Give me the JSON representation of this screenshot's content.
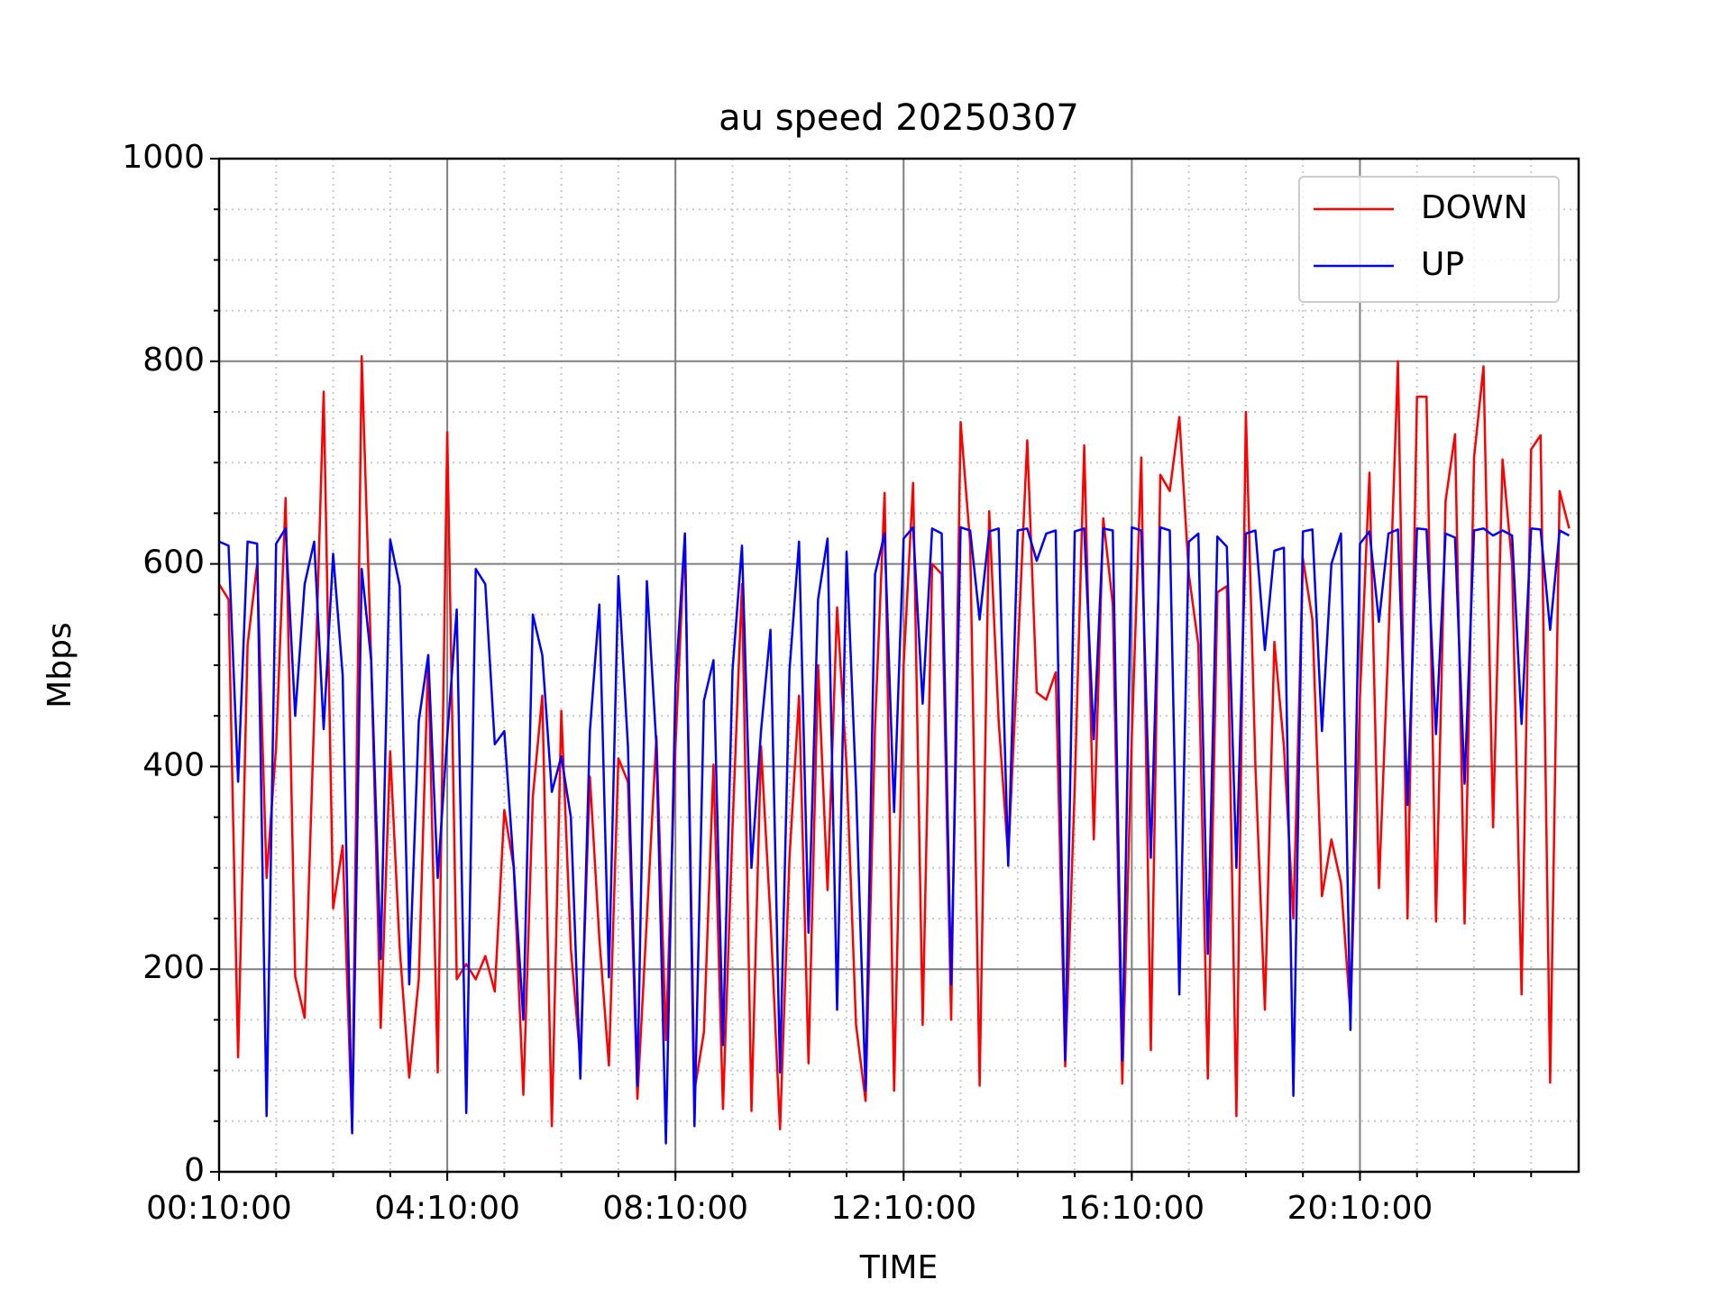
{
  "chart_data": {
    "type": "line",
    "title": "au speed 20250307",
    "xlabel": "TIME",
    "ylabel": "Mbps",
    "categories": [
      "00:10:00",
      "00:20:00",
      "00:30:00",
      "00:40:00",
      "00:50:00",
      "01:00:00",
      "01:10:00",
      "01:20:00",
      "01:30:00",
      "01:40:00",
      "01:50:00",
      "02:00:00",
      "02:10:00",
      "02:20:00",
      "02:30:00",
      "02:40:00",
      "02:50:00",
      "03:00:00",
      "03:10:00",
      "03:20:00",
      "03:30:00",
      "03:40:00",
      "03:50:00",
      "04:00:00",
      "04:10:00",
      "04:20:00",
      "04:30:00",
      "04:40:00",
      "04:50:00",
      "05:00:00",
      "05:10:00",
      "05:20:00",
      "05:30:00",
      "05:40:00",
      "05:50:00",
      "06:00:00",
      "06:10:00",
      "06:20:00",
      "06:30:00",
      "06:40:00",
      "06:50:00",
      "07:00:00",
      "07:10:00",
      "07:20:00",
      "07:30:00",
      "07:40:00",
      "07:50:00",
      "08:00:00",
      "08:10:00",
      "08:20:00",
      "08:30:00",
      "08:40:00",
      "08:50:00",
      "09:00:00",
      "09:10:00",
      "09:20:00",
      "09:30:00",
      "09:40:00",
      "09:50:00",
      "10:00:00",
      "10:10:00",
      "10:20:00",
      "10:30:00",
      "10:40:00",
      "10:50:00",
      "11:00:00",
      "11:10:00",
      "11:20:00",
      "11:30:00",
      "11:40:00",
      "11:50:00",
      "12:00:00",
      "12:10:00",
      "12:20:00",
      "12:30:00",
      "12:40:00",
      "12:50:00",
      "13:00:00",
      "13:10:00",
      "13:20:00",
      "13:30:00",
      "13:40:00",
      "13:50:00",
      "14:00:00",
      "14:10:00",
      "14:20:00",
      "14:30:00",
      "14:40:00",
      "14:50:00",
      "15:00:00",
      "15:10:00",
      "15:20:00",
      "15:30:00",
      "15:40:00",
      "15:50:00",
      "16:00:00",
      "16:10:00",
      "16:20:00",
      "16:30:00",
      "16:40:00",
      "16:50:00",
      "17:00:00",
      "17:10:00",
      "17:20:00",
      "17:30:00",
      "17:40:00",
      "17:50:00",
      "18:00:00",
      "18:10:00",
      "18:20:00",
      "18:30:00",
      "18:40:00",
      "18:50:00",
      "19:00:00",
      "19:10:00",
      "19:20:00",
      "19:30:00",
      "19:40:00",
      "19:50:00",
      "20:00:00",
      "20:10:00",
      "20:20:00",
      "20:30:00",
      "20:40:00",
      "20:50:00",
      "21:00:00",
      "21:10:00",
      "21:20:00",
      "21:30:00",
      "21:40:00",
      "21:50:00",
      "22:00:00",
      "22:10:00",
      "22:20:00",
      "22:30:00",
      "22:40:00",
      "22:50:00",
      "23:00:00",
      "23:10:00",
      "23:20:00",
      "23:30:00",
      "23:40:00",
      "23:50:00"
    ],
    "xticks": [
      "00:10:00",
      "04:10:00",
      "08:10:00",
      "12:10:00",
      "16:10:00",
      "20:10:00"
    ],
    "series": [
      {
        "name": "DOWN",
        "color": "#ff0000",
        "values": [
          580,
          565,
          113,
          520,
          600,
          290,
          420,
          665,
          193,
          152,
          450,
          770,
          260,
          322,
          40,
          805,
          505,
          142,
          415,
          220,
          93,
          190,
          510,
          98,
          730,
          190,
          205,
          190,
          213,
          178,
          357,
          300,
          76,
          370,
          470,
          45,
          455,
          220,
          110,
          390,
          230,
          105,
          408,
          385,
          72,
          250,
          430,
          130,
          420,
          630,
          80,
          138,
          402,
          62,
          340,
          580,
          60,
          420,
          250,
          42,
          310,
          470,
          107,
          500,
          278,
          557,
          400,
          145,
          70,
          440,
          670,
          80,
          500,
          680,
          145,
          600,
          590,
          150,
          740,
          620,
          85,
          652,
          445,
          310,
          510,
          722,
          473,
          466,
          493,
          104,
          380,
          717,
          328,
          645,
          560,
          87,
          430,
          705,
          120,
          688,
          672,
          745,
          590,
          520,
          92,
          572,
          578,
          55,
          750,
          400,
          160,
          523,
          420,
          250,
          605,
          545,
          272,
          328,
          285,
          155,
          470,
          690,
          280,
          525,
          800,
          250,
          765,
          765,
          247,
          662,
          728,
          245,
          705,
          795,
          340,
          703,
          600,
          175,
          713,
          727,
          88,
          672,
          635
        ]
      },
      {
        "name": "UP",
        "color": "#0000ff",
        "values": [
          622,
          618,
          385,
          622,
          620,
          55,
          620,
          635,
          450,
          580,
          622,
          437,
          610,
          490,
          38,
          595,
          505,
          210,
          624,
          578,
          185,
          445,
          510,
          290,
          430,
          555,
          58,
          595,
          580,
          422,
          435,
          300,
          150,
          550,
          510,
          375,
          410,
          350,
          92,
          435,
          560,
          192,
          588,
          420,
          85,
          583,
          420,
          28,
          480,
          630,
          45,
          465,
          505,
          125,
          495,
          618,
          300,
          435,
          535,
          98,
          495,
          622,
          236,
          565,
          625,
          160,
          612,
          380,
          80,
          590,
          630,
          355,
          625,
          636,
          462,
          635,
          630,
          185,
          636,
          633,
          545,
          632,
          635,
          302,
          633,
          635,
          603,
          630,
          633,
          110,
          632,
          635,
          427,
          635,
          633,
          110,
          636,
          633,
          310,
          636,
          633,
          175,
          622,
          630,
          215,
          627,
          617,
          300,
          630,
          633,
          515,
          613,
          616,
          75,
          632,
          634,
          435,
          600,
          630,
          140,
          620,
          632,
          543,
          630,
          634,
          362,
          635,
          634,
          432,
          630,
          626,
          383,
          633,
          635,
          628,
          633,
          628,
          442,
          635,
          634,
          535,
          633,
          628
        ]
      }
    ],
    "ylim": [
      0,
      1000
    ],
    "yticks": [
      0,
      200,
      400,
      600,
      800,
      1000
    ],
    "yminorticks": [
      50,
      100,
      150,
      250,
      300,
      350,
      450,
      500,
      550,
      650,
      700,
      750,
      850,
      900,
      950
    ],
    "grid": true,
    "legend": "upper right"
  }
}
